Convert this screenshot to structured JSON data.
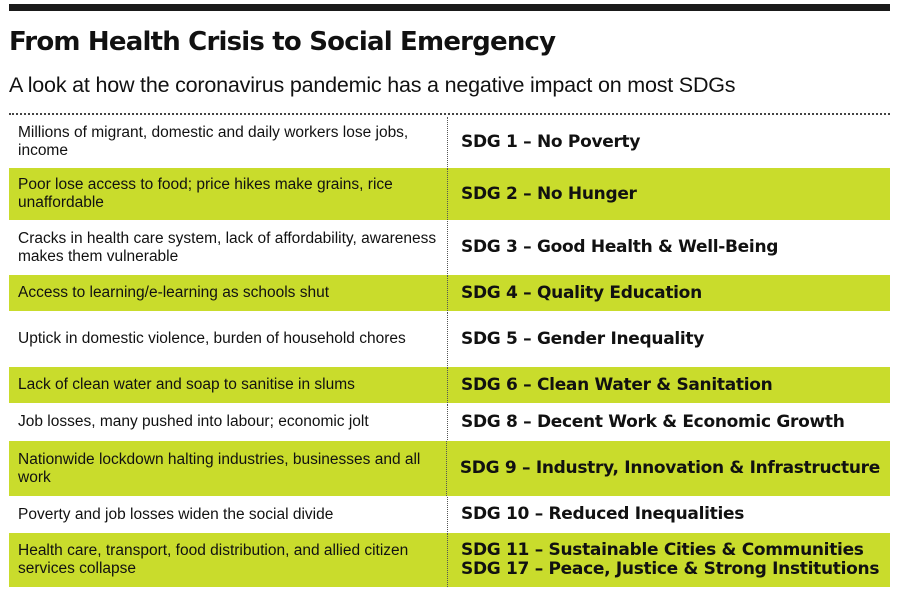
{
  "header": {
    "title": "From Health Crisis to Social Emergency",
    "subtitle": "A look at how the coronavirus pandemic has a negative impact on most SDGs"
  },
  "colors": {
    "highlight": "#c9dc2c",
    "rule": "#1a1a1a"
  },
  "rows": [
    {
      "description": "Millions of migrant, domestic and daily workers lose jobs, income",
      "sdg": "SDG 1 – No Poverty",
      "sdg_extra": ""
    },
    {
      "description": "Poor lose access to food; price hikes make grains, rice unaffordable",
      "sdg": "SDG 2 – No Hunger",
      "sdg_extra": ""
    },
    {
      "description": "Cracks in health care system, lack of affordability, awareness makes them vulnerable",
      "sdg": "SDG 3 – Good Health & Well-Being",
      "sdg_extra": ""
    },
    {
      "description": "Access to learning/e-learning as schools shut",
      "sdg": "SDG 4 – Quality Education",
      "sdg_extra": ""
    },
    {
      "description": "Uptick in domestic violence, burden of household chores",
      "sdg": "SDG 5 – Gender Inequality",
      "sdg_extra": ""
    },
    {
      "description": "Lack of clean water and soap to sanitise in slums",
      "sdg": "SDG 6 – Clean Water & Sanitation",
      "sdg_extra": ""
    },
    {
      "description": "Job losses, many pushed into labour; economic jolt",
      "sdg": "SDG 8 – Decent Work & Economic Growth",
      "sdg_extra": ""
    },
    {
      "description": "Nationwide lockdown halting industries, businesses and all work",
      "sdg": "SDG 9 – Industry, Innovation & Infrastructure",
      "sdg_extra": ""
    },
    {
      "description": "Poverty and job losses widen the social divide",
      "sdg": "SDG 10 – Reduced Inequalities",
      "sdg_extra": ""
    },
    {
      "description": "Health care, transport, food distribution, and allied citizen services collapse",
      "sdg": "SDG 11 – Sustainable Cities & Communities",
      "sdg_extra": "SDG 17 – Peace, Justice & Strong Institutions"
    }
  ]
}
